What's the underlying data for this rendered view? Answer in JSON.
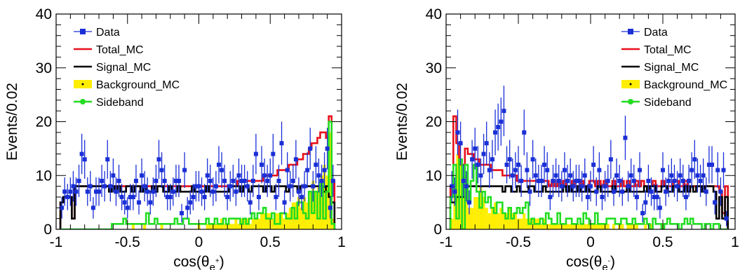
{
  "colors": {
    "data": "#1a2fd6",
    "total_mc": "#e8101a",
    "signal_mc": "#000000",
    "background_mc": "#ffee00",
    "sideband": "#22dd22"
  },
  "chart_data": [
    {
      "type": "histogram",
      "ylabel": "Events/0.02",
      "xlabel_main": "cos(θ",
      "xlabel_sub": "e",
      "xlabel_sup": "+",
      "xlabel_close": ")",
      "xlim": [
        -1,
        1
      ],
      "ylim": [
        0,
        40
      ],
      "x_ticks": [
        "-1",
        "-0.5",
        "0",
        "0.5",
        "1"
      ],
      "y_ticks": [
        "0",
        "10",
        "20",
        "30",
        "40"
      ],
      "legend_position": "top-left",
      "legend": [
        "Data",
        "Total_MC",
        "Signal_MC",
        "Background_MC",
        "Sideband"
      ],
      "bin_width": 0.02,
      "x_start": -0.96,
      "x_end": 0.96,
      "data": [
        4,
        7,
        6,
        7,
        8,
        7,
        9,
        14,
        13,
        7,
        8,
        4,
        7,
        7,
        9,
        8,
        13,
        8,
        10,
        7,
        9,
        6,
        5,
        4,
        6,
        6,
        9,
        5,
        10,
        8,
        7,
        5,
        7,
        9,
        13,
        11,
        9,
        6,
        6,
        7,
        9,
        9,
        3,
        11,
        4,
        5,
        6,
        8,
        8,
        7,
        6,
        10,
        9,
        7,
        8,
        12,
        11,
        9,
        6,
        8,
        9,
        7,
        10,
        9,
        9,
        8,
        5,
        9,
        14,
        6,
        12,
        10,
        9,
        10,
        14,
        6,
        9,
        16,
        5,
        11,
        8,
        9,
        13,
        7,
        6,
        8,
        11,
        15,
        8,
        12,
        10,
        9,
        11,
        15,
        4,
        9
      ],
      "total_mc": [
        5,
        6,
        6,
        6,
        2,
        8,
        8,
        8,
        8,
        8,
        8,
        8,
        8,
        8,
        8,
        8,
        8,
        8,
        8,
        8,
        8,
        8,
        8,
        8,
        8,
        8,
        8,
        8,
        8,
        8,
        8,
        8,
        8,
        8,
        8,
        8,
        8,
        8,
        8,
        8,
        8,
        8,
        8,
        8,
        8,
        8,
        8,
        8,
        8,
        8,
        8,
        8,
        8,
        8,
        8,
        8,
        8,
        8,
        8,
        8,
        8,
        8,
        9,
        9,
        9,
        9,
        9,
        9,
        9,
        9,
        9,
        10,
        10,
        10,
        10,
        10,
        11,
        11,
        11,
        11,
        12,
        12,
        12,
        13,
        13,
        14,
        14,
        15,
        16,
        16,
        17,
        18,
        18,
        17,
        21,
        9
      ],
      "signal_mc": [
        5,
        6,
        6,
        6,
        2,
        8,
        8,
        8,
        8,
        8,
        8,
        8,
        8,
        8,
        8,
        8,
        8,
        7,
        8,
        7,
        8,
        7,
        7,
        8,
        8,
        7,
        8,
        8,
        7,
        8,
        7,
        7,
        8,
        7,
        8,
        8,
        7,
        7,
        8,
        7,
        7,
        8,
        7,
        7,
        7,
        7,
        8,
        7,
        7,
        7,
        7,
        8,
        7,
        7,
        7,
        7,
        7,
        7,
        7,
        8,
        8,
        8,
        8,
        7,
        8,
        8,
        7,
        8,
        8,
        8,
        8,
        7,
        8,
        8,
        7,
        8,
        8,
        8,
        8,
        7,
        8,
        8,
        8,
        7,
        8,
        8,
        8,
        8,
        8,
        8,
        8,
        8,
        7,
        8,
        6,
        5
      ],
      "background_mc": [
        0,
        0,
        0,
        0,
        0,
        0,
        0,
        0,
        0,
        0,
        0,
        0,
        0,
        0,
        0,
        0,
        0,
        0,
        0,
        0,
        0,
        0,
        0,
        0,
        0,
        1,
        0,
        0,
        0,
        1,
        0,
        0,
        0,
        0,
        0,
        1,
        0,
        0,
        0,
        0,
        0,
        0,
        0,
        0,
        0,
        0,
        0,
        0,
        1,
        0,
        0,
        1,
        1,
        1,
        1,
        1,
        2,
        1,
        1,
        1,
        1,
        2,
        1,
        2,
        2,
        2,
        1,
        2,
        2,
        2,
        3,
        3,
        3,
        3,
        2,
        3,
        3,
        3,
        2,
        3,
        4,
        5,
        5,
        6,
        4,
        6,
        5,
        7,
        9,
        7,
        8,
        10,
        12,
        10,
        18,
        2
      ],
      "sideband": [
        0,
        0,
        0,
        0,
        0,
        0,
        0,
        0,
        0,
        0,
        0,
        0,
        0,
        0,
        0,
        0,
        0,
        0,
        1,
        1,
        1,
        1,
        2,
        1,
        1,
        1,
        1,
        1,
        1,
        1,
        3,
        1,
        1,
        2,
        1,
        1,
        1,
        1,
        1,
        1,
        2,
        1,
        1,
        2,
        2,
        1,
        1,
        1,
        1,
        1,
        1,
        2,
        1,
        1,
        2,
        1,
        1,
        2,
        1,
        2,
        2,
        2,
        2,
        1,
        2,
        1,
        2,
        3,
        2,
        3,
        3,
        4,
        2,
        2,
        3,
        1,
        1,
        3,
        3,
        2,
        2,
        4,
        2,
        5,
        5,
        3,
        2,
        7,
        3,
        7,
        2,
        9,
        2,
        7,
        20,
        1
      ]
    },
    {
      "type": "histogram",
      "ylabel": "Events/0.02",
      "xlabel_main": "cos(θ",
      "xlabel_sub": "e",
      "xlabel_sup": "-",
      "xlabel_close": ")",
      "xlim": [
        -1,
        1
      ],
      "ylim": [
        0,
        40
      ],
      "x_ticks": [
        "-1",
        "-0.5",
        "0",
        "0.5",
        "1"
      ],
      "y_ticks": [
        "0",
        "10",
        "20",
        "30",
        "40"
      ],
      "legend_position": "top-right",
      "legend": [
        "Data",
        "Total_MC",
        "Signal_MC",
        "Background_MC",
        "Sideband"
      ],
      "bin_width": 0.02,
      "x_start": -0.96,
      "x_end": 0.96,
      "data": [
        8,
        7,
        18,
        16,
        9,
        8,
        5,
        13,
        15,
        12,
        10,
        14,
        16,
        11,
        13,
        18,
        19,
        20,
        22,
        12,
        13,
        10,
        11,
        12,
        9,
        18,
        11,
        7,
        13,
        10,
        9,
        9,
        12,
        11,
        6,
        9,
        10,
        9,
        8,
        11,
        9,
        10,
        8,
        9,
        9,
        8,
        10,
        6,
        8,
        12,
        7,
        11,
        6,
        8,
        9,
        13,
        7,
        10,
        9,
        7,
        17,
        8,
        10,
        9,
        6,
        11,
        3,
        5,
        9,
        7,
        6,
        6,
        4,
        11,
        7,
        9,
        10,
        9,
        8,
        10,
        9,
        6,
        9,
        11,
        13,
        10,
        9,
        10,
        7,
        12,
        12,
        5,
        11,
        7,
        11,
        2
      ],
      "total_mc": [
        8,
        21,
        16,
        12,
        12,
        15,
        14,
        14,
        13,
        13,
        12,
        12,
        12,
        12,
        11,
        11,
        11,
        11,
        10,
        10,
        10,
        10,
        10,
        9,
        9,
        9,
        9,
        9,
        9,
        9,
        9,
        9,
        9,
        9,
        8,
        9,
        8,
        9,
        8,
        9,
        8,
        8,
        9,
        8,
        8,
        9,
        8,
        8,
        9,
        9,
        8,
        9,
        8,
        9,
        8,
        8,
        9,
        8,
        8,
        9,
        8,
        9,
        8,
        8,
        9,
        8,
        9,
        8,
        8,
        8,
        9,
        8,
        8,
        9,
        8,
        8,
        8,
        9,
        9,
        8,
        8,
        9,
        8,
        8,
        8,
        8,
        8,
        8,
        8,
        8,
        8,
        8,
        8,
        7,
        3,
        8
      ],
      "signal_mc": [
        5,
        5,
        6,
        6,
        6,
        8,
        8,
        8,
        8,
        8,
        8,
        8,
        8,
        8,
        8,
        8,
        8,
        8,
        7,
        8,
        8,
        7,
        7,
        8,
        7,
        7,
        7,
        8,
        8,
        7,
        7,
        7,
        8,
        7,
        7,
        7,
        7,
        7,
        7,
        8,
        7,
        8,
        7,
        7,
        8,
        7,
        7,
        8,
        7,
        7,
        7,
        8,
        7,
        7,
        7,
        7,
        8,
        7,
        7,
        7,
        7,
        8,
        7,
        7,
        7,
        7,
        7,
        8,
        7,
        8,
        8,
        7,
        7,
        8,
        8,
        7,
        7,
        8,
        8,
        7,
        7,
        8,
        7,
        8,
        7,
        8,
        8,
        7,
        8,
        8,
        8,
        7,
        2,
        6,
        2,
        6
      ],
      "background_mc": [
        2,
        8,
        14,
        12,
        10,
        10,
        4,
        4,
        6,
        6,
        8,
        6,
        4,
        3,
        4,
        5,
        3,
        4,
        3,
        3,
        4,
        3,
        3,
        2,
        2,
        3,
        2,
        2,
        2,
        2,
        2,
        1,
        2,
        1,
        1,
        1,
        1,
        1,
        1,
        1,
        1,
        1,
        1,
        1,
        1,
        1,
        1,
        1,
        1,
        1,
        1,
        1,
        1,
        1,
        1,
        0,
        1,
        0,
        1,
        1,
        0,
        1,
        1,
        1,
        1,
        0,
        0,
        1,
        0,
        1,
        0,
        0,
        0,
        1,
        0,
        0,
        0,
        0,
        0,
        0,
        0,
        0,
        0,
        0,
        0,
        0,
        0,
        0,
        0,
        0,
        0,
        0,
        0,
        0,
        0,
        0
      ],
      "sideband": [
        6,
        12,
        2,
        13,
        0,
        12,
        5,
        9,
        12,
        7,
        4,
        7,
        5,
        6,
        4,
        3,
        5,
        5,
        3,
        2,
        4,
        2,
        3,
        4,
        3,
        4,
        5,
        1,
        2,
        1,
        1,
        2,
        1,
        3,
        2,
        1,
        1,
        3,
        1,
        1,
        2,
        2,
        1,
        1,
        2,
        1,
        3,
        2,
        1,
        1,
        3,
        1,
        1,
        1,
        2,
        2,
        2,
        1,
        1,
        2,
        2,
        1,
        1,
        2,
        1,
        1,
        1,
        2,
        1,
        0,
        2,
        1,
        1,
        0,
        1,
        2,
        1,
        1,
        1,
        0,
        1,
        2,
        1,
        2,
        1,
        1,
        1,
        0,
        1,
        1,
        0,
        1,
        1,
        0,
        0,
        0
      ]
    }
  ]
}
